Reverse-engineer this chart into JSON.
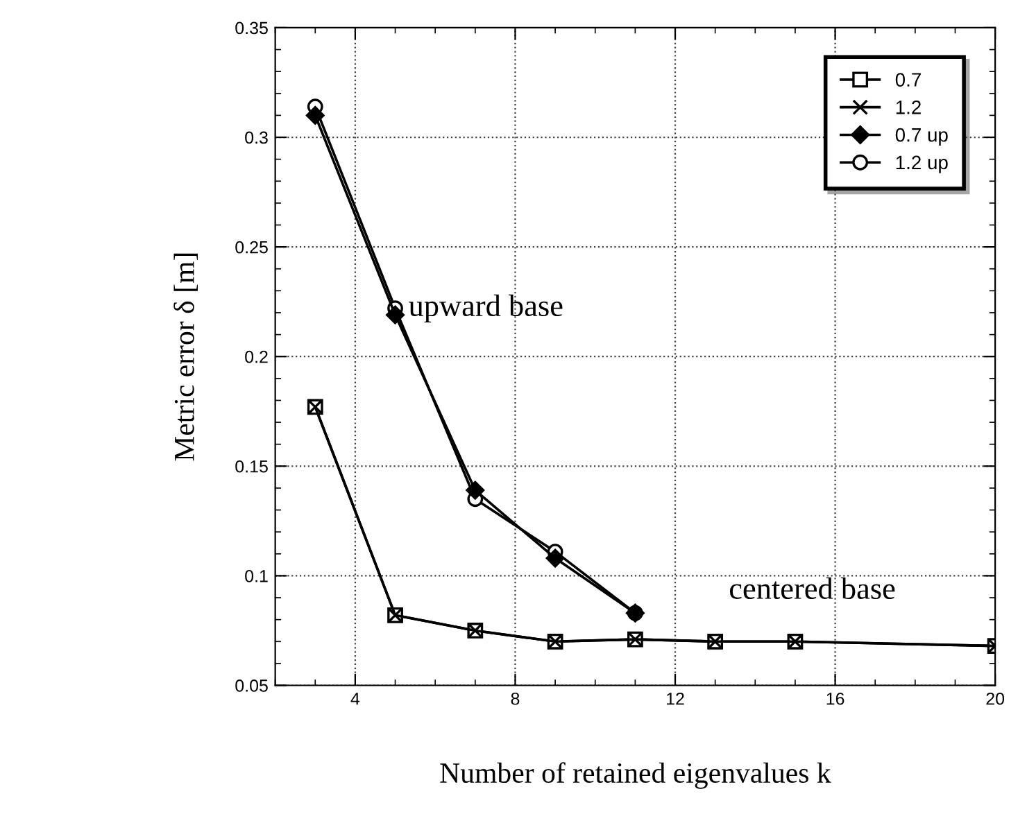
{
  "chart_data": {
    "type": "line",
    "xlabel": "Number of retained eigenvalues k",
    "ylabel": "Metric error δ [m]",
    "xlim": [
      2,
      20
    ],
    "xticks": [
      4,
      8,
      12,
      16,
      20
    ],
    "ylim": [
      0.05,
      0.35
    ],
    "yticks": [
      0.05,
      0.1,
      0.15,
      0.2,
      0.25,
      0.3,
      0.35
    ],
    "grid": true,
    "legend": "top right",
    "line_style": "solid",
    "series": [
      {
        "name": "0.7",
        "color": "#000000",
        "marker": "square",
        "x": [
          3,
          5,
          7,
          9,
          11,
          13,
          15,
          20
        ],
        "values": [
          0.177,
          0.082,
          0.075,
          0.07,
          0.071,
          0.07,
          0.07,
          0.068
        ]
      },
      {
        "name": "1.2",
        "color": "#000000",
        "marker": "cross",
        "x": [
          3,
          5,
          7,
          9,
          11,
          13,
          15,
          20
        ],
        "values": [
          0.177,
          0.082,
          0.075,
          0.07,
          0.071,
          0.07,
          0.07,
          0.068
        ]
      },
      {
        "name": "0.7 up",
        "color": "#000000",
        "marker": "diamond",
        "x": [
          3,
          5,
          7,
          9,
          11
        ],
        "values": [
          0.31,
          0.219,
          0.139,
          0.108,
          0.083
        ]
      },
      {
        "name": "1.2 up",
        "color": "#000000",
        "marker": "circle",
        "x": [
          3,
          5,
          7,
          9,
          11
        ],
        "values": [
          0.314,
          0.222,
          0.135,
          0.111,
          0.083
        ]
      }
    ],
    "annotations": [
      "upward base",
      "centered base"
    ]
  }
}
